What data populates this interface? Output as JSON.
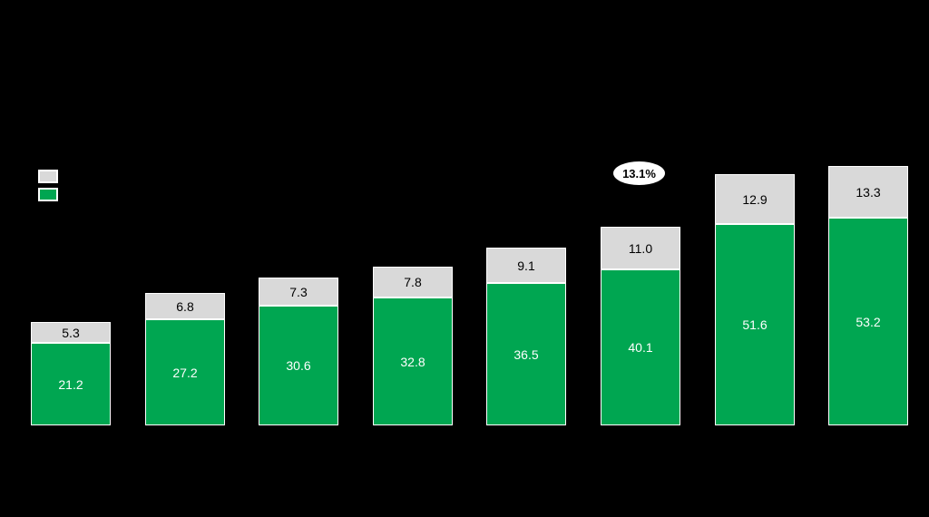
{
  "colors": {
    "background": "#000000",
    "green_series": "#00A651",
    "gray_series": "#D9D9D9",
    "bar_border": "#FFFFFF",
    "green_label_text": "#FFFFFF",
    "gray_label_text": "#000000",
    "annotation_fill": "#FFFFFF",
    "annotation_text": "#000000"
  },
  "legend": {
    "position": "top-left",
    "swatches": [
      {
        "name": "gray-series-swatch",
        "color": "#D9D9D9"
      },
      {
        "name": "green-series-swatch",
        "color": "#00A651"
      }
    ]
  },
  "annotation": {
    "text": "13.1%",
    "shape": "white-ellipse",
    "location": "above sixth bar"
  },
  "chart_data": {
    "type": "bar",
    "stacked": true,
    "orientation": "vertical",
    "categories": [
      "",
      "",
      "",
      "",
      "",
      "",
      "",
      ""
    ],
    "series": [
      {
        "name": "green-bottom-segment",
        "color": "#00A651",
        "values": [
          21.2,
          27.2,
          30.6,
          32.8,
          36.5,
          40.1,
          51.6,
          53.2
        ]
      },
      {
        "name": "gray-top-segment",
        "color": "#D9D9D9",
        "values": [
          5.3,
          6.8,
          7.3,
          7.8,
          9.1,
          11.0,
          12.9,
          13.3
        ]
      }
    ],
    "data_labels": {
      "green": [
        "21.2",
        "27.2",
        "30.6",
        "32.8",
        "36.5",
        "40.1",
        "51.6",
        "53.2"
      ],
      "gray": [
        "5.3",
        "6.8",
        "7.3",
        "7.8",
        "9.1",
        "11.0",
        "12.9",
        "13.3"
      ]
    },
    "annotations": [
      {
        "text": "13.1%",
        "shape": "ellipse"
      }
    ],
    "title": "",
    "xlabel": "",
    "ylabel": "",
    "ylim": [
      0,
      70
    ],
    "axes_visible": false,
    "gridlines": false,
    "legend_position": "top-left"
  }
}
